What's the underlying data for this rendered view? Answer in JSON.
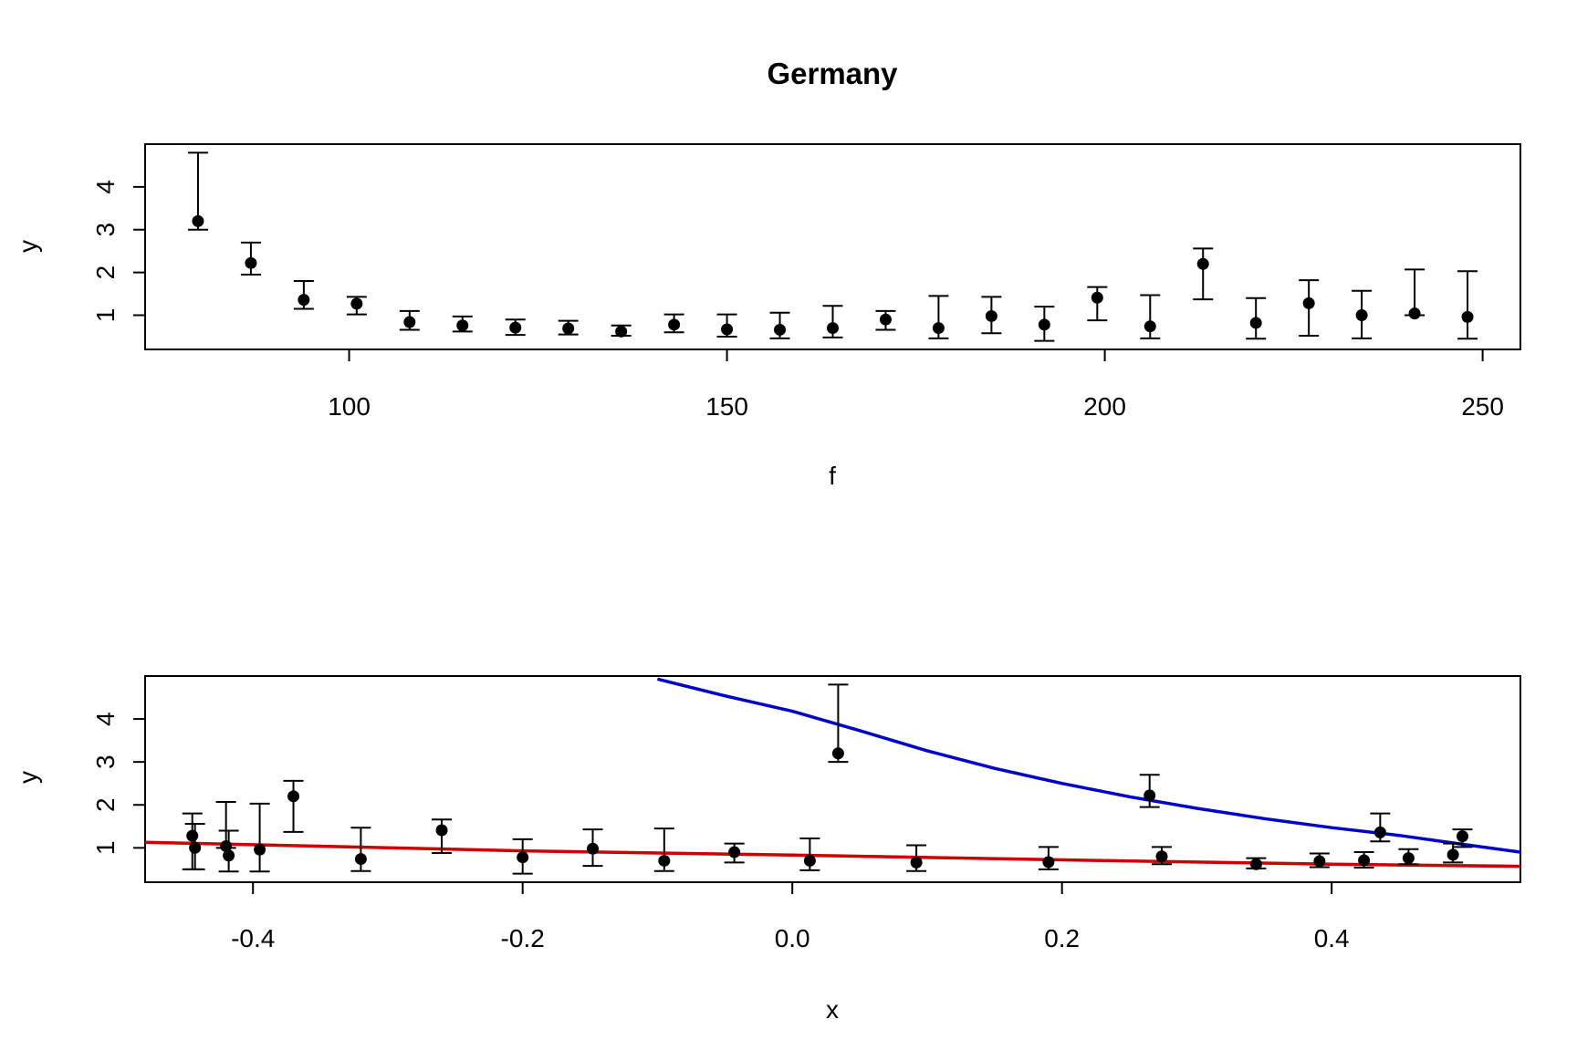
{
  "figure_title": "Germany",
  "chart_data": [
    {
      "type": "scatter",
      "panel": "top",
      "xlabel": "f",
      "ylabel": "y",
      "xlim": [
        73,
        255
      ],
      "ylim": [
        0.2,
        5.0
      ],
      "xticks": [
        100,
        150,
        200,
        250
      ],
      "yticks": [
        1,
        2,
        3,
        4
      ],
      "grid": false,
      "error_bars": true,
      "points": [
        {
          "x": 80,
          "y": 3.2,
          "lo": 3.0,
          "hi": 4.8
        },
        {
          "x": 87,
          "y": 2.22,
          "lo": 1.95,
          "hi": 2.7
        },
        {
          "x": 94,
          "y": 1.36,
          "lo": 1.15,
          "hi": 1.8
        },
        {
          "x": 101,
          "y": 1.27,
          "lo": 1.02,
          "hi": 1.43
        },
        {
          "x": 108,
          "y": 0.84,
          "lo": 0.66,
          "hi": 1.1
        },
        {
          "x": 115,
          "y": 0.76,
          "lo": 0.62,
          "hi": 0.97
        },
        {
          "x": 122,
          "y": 0.71,
          "lo": 0.54,
          "hi": 0.9
        },
        {
          "x": 129,
          "y": 0.69,
          "lo": 0.55,
          "hi": 0.87
        },
        {
          "x": 136,
          "y": 0.62,
          "lo": 0.52,
          "hi": 0.76
        },
        {
          "x": 143,
          "y": 0.78,
          "lo": 0.6,
          "hi": 1.02
        },
        {
          "x": 150,
          "y": 0.67,
          "lo": 0.5,
          "hi": 1.02
        },
        {
          "x": 157,
          "y": 0.66,
          "lo": 0.46,
          "hi": 1.06
        },
        {
          "x": 164,
          "y": 0.7,
          "lo": 0.48,
          "hi": 1.22
        },
        {
          "x": 171,
          "y": 0.9,
          "lo": 0.66,
          "hi": 1.1
        },
        {
          "x": 178,
          "y": 0.7,
          "lo": 0.46,
          "hi": 1.45
        },
        {
          "x": 185,
          "y": 0.98,
          "lo": 0.58,
          "hi": 1.43
        },
        {
          "x": 192,
          "y": 0.78,
          "lo": 0.4,
          "hi": 1.2
        },
        {
          "x": 199,
          "y": 1.41,
          "lo": 0.88,
          "hi": 1.66
        },
        {
          "x": 206,
          "y": 0.74,
          "lo": 0.46,
          "hi": 1.47
        },
        {
          "x": 213,
          "y": 2.2,
          "lo": 1.37,
          "hi": 2.56
        },
        {
          "x": 220,
          "y": 0.82,
          "lo": 0.45,
          "hi": 1.4
        },
        {
          "x": 227,
          "y": 1.28,
          "lo": 0.52,
          "hi": 1.82
        },
        {
          "x": 234,
          "y": 1.0,
          "lo": 0.46,
          "hi": 1.57
        },
        {
          "x": 241,
          "y": 1.04,
          "lo": 1.0,
          "hi": 2.07
        },
        {
          "x": 248,
          "y": 0.96,
          "lo": 0.45,
          "hi": 2.03
        }
      ]
    },
    {
      "type": "scatter",
      "panel": "bottom",
      "xlabel": "x",
      "ylabel": "y",
      "xlim": [
        -0.48,
        0.54
      ],
      "ylim": [
        0.2,
        5.0
      ],
      "xticks": [
        "-0.4",
        "-0.2",
        "0.0",
        "0.2",
        "0.4"
      ],
      "yticks": [
        1,
        2,
        3,
        4
      ],
      "grid": false,
      "error_bars": true,
      "points": [
        {
          "x": -0.445,
          "y": 1.28,
          "lo": 0.5,
          "hi": 1.8
        },
        {
          "x": -0.443,
          "y": 1.0,
          "lo": 0.5,
          "hi": 1.56
        },
        {
          "x": -0.42,
          "y": 1.04,
          "lo": 1.0,
          "hi": 2.07
        },
        {
          "x": -0.418,
          "y": 0.82,
          "lo": 0.45,
          "hi": 1.4
        },
        {
          "x": -0.395,
          "y": 0.96,
          "lo": 0.45,
          "hi": 2.03
        },
        {
          "x": -0.37,
          "y": 2.2,
          "lo": 1.37,
          "hi": 2.56
        },
        {
          "x": -0.32,
          "y": 0.74,
          "lo": 0.46,
          "hi": 1.47
        },
        {
          "x": -0.26,
          "y": 1.41,
          "lo": 0.88,
          "hi": 1.66
        },
        {
          "x": -0.2,
          "y": 0.78,
          "lo": 0.4,
          "hi": 1.2
        },
        {
          "x": -0.148,
          "y": 0.98,
          "lo": 0.58,
          "hi": 1.43
        },
        {
          "x": -0.095,
          "y": 0.7,
          "lo": 0.46,
          "hi": 1.45
        },
        {
          "x": -0.043,
          "y": 0.9,
          "lo": 0.66,
          "hi": 1.1
        },
        {
          "x": 0.013,
          "y": 0.7,
          "lo": 0.48,
          "hi": 1.22
        },
        {
          "x": 0.034,
          "y": 3.2,
          "lo": 3.0,
          "hi": 4.8
        },
        {
          "x": 0.092,
          "y": 0.66,
          "lo": 0.46,
          "hi": 1.06
        },
        {
          "x": 0.19,
          "y": 0.67,
          "lo": 0.5,
          "hi": 1.02
        },
        {
          "x": 0.265,
          "y": 2.22,
          "lo": 1.95,
          "hi": 2.7
        },
        {
          "x": 0.274,
          "y": 0.8,
          "lo": 0.62,
          "hi": 1.02
        },
        {
          "x": 0.344,
          "y": 0.62,
          "lo": 0.52,
          "hi": 0.76
        },
        {
          "x": 0.391,
          "y": 0.69,
          "lo": 0.55,
          "hi": 0.87
        },
        {
          "x": 0.424,
          "y": 0.71,
          "lo": 0.54,
          "hi": 0.9
        },
        {
          "x": 0.436,
          "y": 1.36,
          "lo": 1.15,
          "hi": 1.8
        },
        {
          "x": 0.457,
          "y": 0.76,
          "lo": 0.62,
          "hi": 0.97
        },
        {
          "x": 0.49,
          "y": 0.84,
          "lo": 0.66,
          "hi": 1.1
        },
        {
          "x": 0.497,
          "y": 1.27,
          "lo": 1.02,
          "hi": 1.43
        }
      ],
      "curves": [
        {
          "color": "#0000cc",
          "x": [
            -0.1,
            -0.05,
            0.0,
            0.05,
            0.1,
            0.15,
            0.2,
            0.25,
            0.3,
            0.35,
            0.4,
            0.45,
            0.5,
            0.54
          ],
          "y": [
            4.93,
            4.54,
            4.18,
            3.73,
            3.26,
            2.85,
            2.5,
            2.19,
            1.92,
            1.68,
            1.47,
            1.29,
            1.07,
            0.9
          ]
        },
        {
          "color": "#cc0000",
          "x": [
            -0.48,
            -0.2,
            0.0,
            0.2,
            0.4,
            0.54
          ],
          "y": [
            1.13,
            0.93,
            0.83,
            0.72,
            0.62,
            0.57
          ]
        }
      ]
    }
  ]
}
